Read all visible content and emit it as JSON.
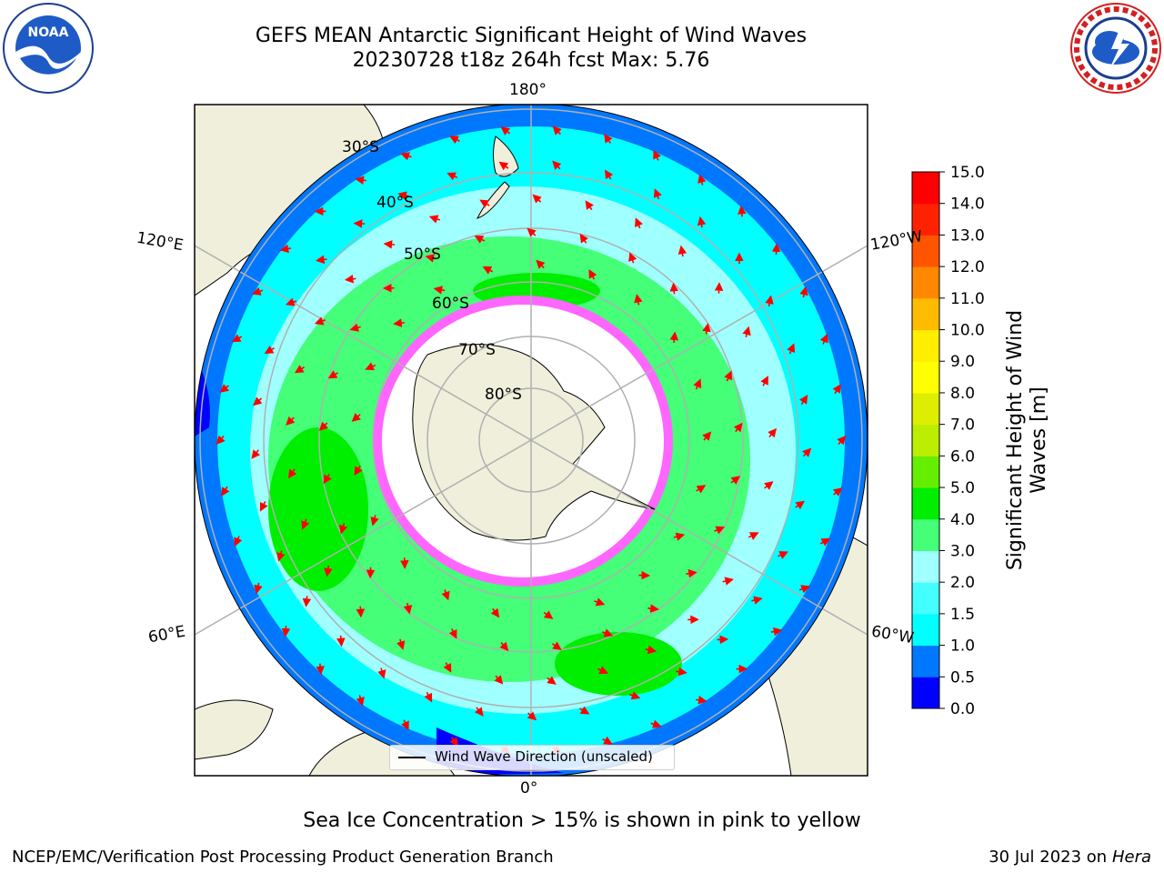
{
  "header": {
    "title_line1": "GEFS MEAN Antarctic Significant Height of Wind Waves",
    "title_line2": "20230728 t18z 264h fcst   Max: 5.76"
  },
  "logos": {
    "left": "noaa-logo",
    "right": "national-weather-service-logo"
  },
  "map": {
    "longitude_labels": {
      "top": "180°",
      "bottom": "0°",
      "upper_left": "120°E",
      "upper_right": "120°W",
      "lower_left": "60°E",
      "lower_right": "60°W"
    },
    "latitude_labels": [
      "30°S",
      "40°S",
      "50°S",
      "60°S",
      "70°S",
      "80°S"
    ],
    "legend_label": "Wind Wave Direction (unscaled)"
  },
  "colorbar": {
    "label": "Significant Height of Wind Waves [m]",
    "ticks": [
      "0.0",
      "0.5",
      "1.0",
      "1.5",
      "2.0",
      "3.0",
      "4.0",
      "5.0",
      "6.0",
      "7.0",
      "8.0",
      "9.0",
      "10.0",
      "11.0",
      "12.0",
      "13.0",
      "14.0",
      "15.0"
    ],
    "colors": [
      "#0000ff",
      "#0077ff",
      "#00ffff",
      "#44ffff",
      "#a0ffff",
      "#44ff77",
      "#00ee00",
      "#66ee00",
      "#bbee00",
      "#ddee00",
      "#ffff00",
      "#ffee00",
      "#ffbb00",
      "#ff8800",
      "#ff5500",
      "#ff2200",
      "#ff0000"
    ]
  },
  "caption": "Sea Ice Concentration > 15% is shown in pink to yellow",
  "footer": {
    "left": "NCEP/EMC/Verification Post Processing Product Generation Branch",
    "right_date": "30 Jul 2023 on",
    "right_host": "Hera"
  }
}
